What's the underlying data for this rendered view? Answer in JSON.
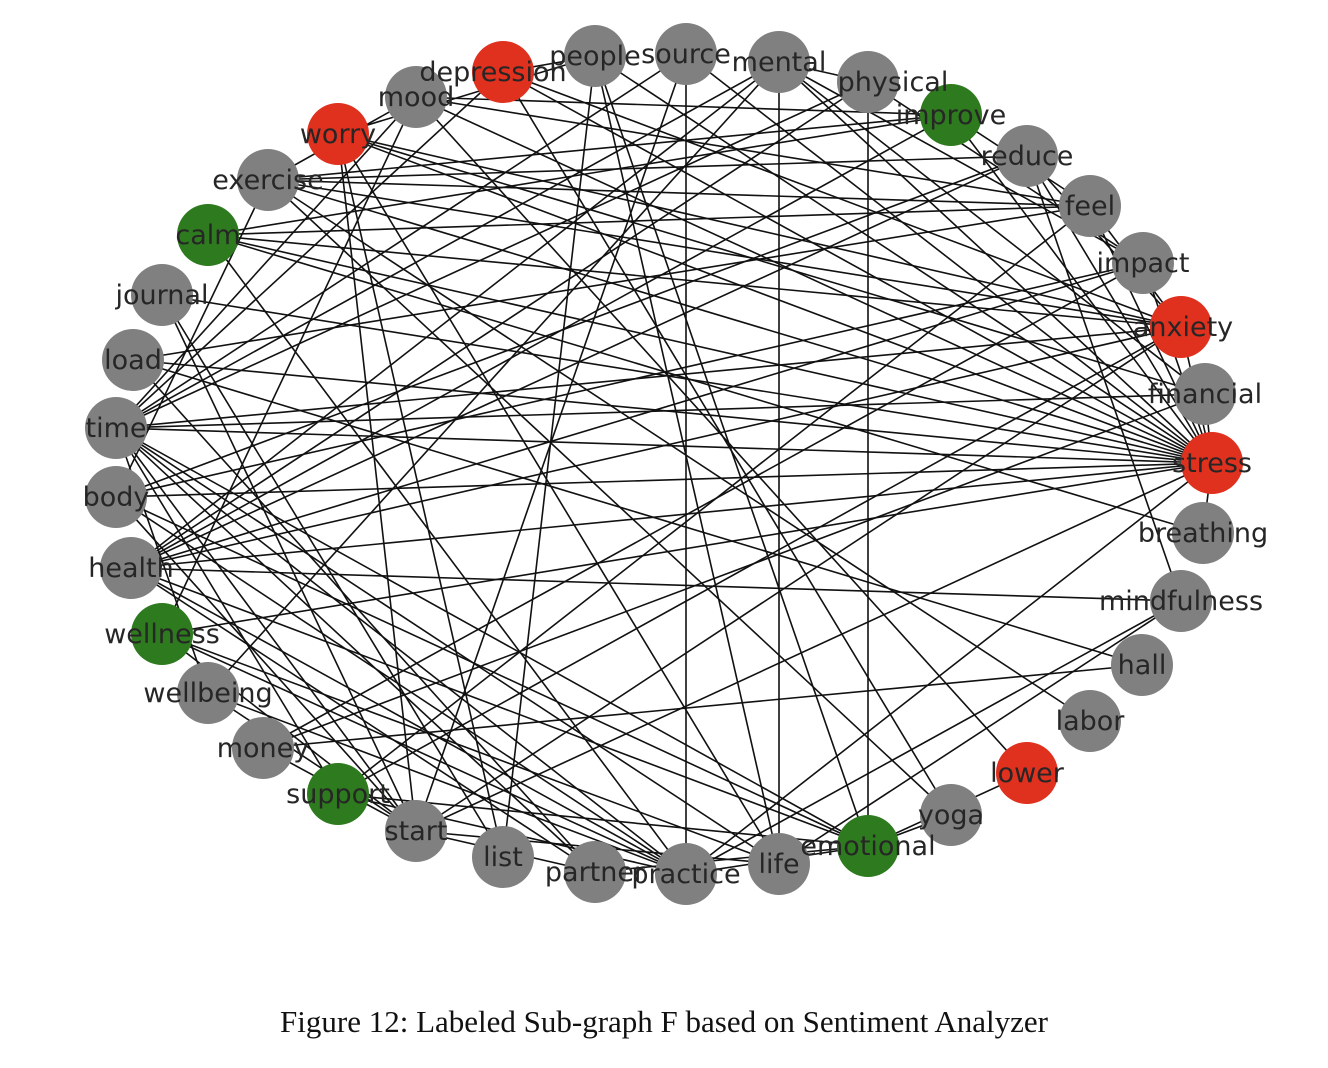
{
  "colors": {
    "negative": "#e0301e",
    "positive": "#2e7a1e",
    "neutral": "#808080",
    "edge": "#111111"
  },
  "nodes": [
    {
      "id": "depression",
      "sentiment": "negative"
    },
    {
      "id": "people",
      "sentiment": "neutral"
    },
    {
      "id": "source",
      "sentiment": "neutral"
    },
    {
      "id": "mental",
      "sentiment": "neutral"
    },
    {
      "id": "physical",
      "sentiment": "neutral"
    },
    {
      "id": "improve",
      "sentiment": "positive"
    },
    {
      "id": "reduce",
      "sentiment": "neutral"
    },
    {
      "id": "feel",
      "sentiment": "neutral"
    },
    {
      "id": "impact",
      "sentiment": "neutral"
    },
    {
      "id": "anxiety",
      "sentiment": "negative"
    },
    {
      "id": "financial",
      "sentiment": "neutral"
    },
    {
      "id": "stress",
      "sentiment": "negative"
    },
    {
      "id": "breathing",
      "sentiment": "neutral"
    },
    {
      "id": "mindfulness",
      "sentiment": "neutral"
    },
    {
      "id": "hall",
      "sentiment": "neutral"
    },
    {
      "id": "labor",
      "sentiment": "neutral"
    },
    {
      "id": "lower",
      "sentiment": "negative"
    },
    {
      "id": "yoga",
      "sentiment": "neutral"
    },
    {
      "id": "emotional",
      "sentiment": "positive"
    },
    {
      "id": "life",
      "sentiment": "neutral"
    },
    {
      "id": "practice",
      "sentiment": "neutral"
    },
    {
      "id": "partner",
      "sentiment": "neutral"
    },
    {
      "id": "list",
      "sentiment": "neutral"
    },
    {
      "id": "start",
      "sentiment": "neutral"
    },
    {
      "id": "support",
      "sentiment": "positive"
    },
    {
      "id": "money",
      "sentiment": "neutral"
    },
    {
      "id": "wellbeing",
      "sentiment": "neutral"
    },
    {
      "id": "wellness",
      "sentiment": "positive"
    },
    {
      "id": "health",
      "sentiment": "neutral"
    },
    {
      "id": "body",
      "sentiment": "neutral"
    },
    {
      "id": "time",
      "sentiment": "neutral"
    },
    {
      "id": "load",
      "sentiment": "neutral"
    },
    {
      "id": "journal",
      "sentiment": "neutral"
    },
    {
      "id": "calm",
      "sentiment": "positive"
    },
    {
      "id": "exercise",
      "sentiment": "neutral"
    },
    {
      "id": "worry",
      "sentiment": "negative"
    },
    {
      "id": "mood",
      "sentiment": "neutral"
    }
  ],
  "edges": [
    [
      "stress",
      "anxiety"
    ],
    [
      "stress",
      "financial"
    ],
    [
      "stress",
      "feel"
    ],
    [
      "stress",
      "impact"
    ],
    [
      "stress",
      "reduce"
    ],
    [
      "stress",
      "improve"
    ],
    [
      "stress",
      "mental"
    ],
    [
      "stress",
      "time"
    ],
    [
      "stress",
      "body"
    ],
    [
      "stress",
      "load"
    ],
    [
      "stress",
      "journal"
    ],
    [
      "stress",
      "calm"
    ],
    [
      "stress",
      "exercise"
    ],
    [
      "stress",
      "worry"
    ],
    [
      "stress",
      "health"
    ],
    [
      "stress",
      "people"
    ],
    [
      "stress",
      "mood"
    ],
    [
      "stress",
      "depression"
    ],
    [
      "stress",
      "practice"
    ],
    [
      "stress",
      "start"
    ],
    [
      "stress",
      "wellness"
    ],
    [
      "stress",
      "breathing"
    ],
    [
      "stress",
      "source"
    ],
    [
      "anxiety",
      "feel"
    ],
    [
      "anxiety",
      "depression"
    ],
    [
      "anxiety",
      "worry"
    ],
    [
      "anxiety",
      "time"
    ],
    [
      "anxiety",
      "exercise"
    ],
    [
      "anxiety",
      "health"
    ],
    [
      "anxiety",
      "reduce"
    ],
    [
      "anxiety",
      "start"
    ],
    [
      "anxiety",
      "calm"
    ],
    [
      "anxiety",
      "support"
    ],
    [
      "financial",
      "money"
    ],
    [
      "financial",
      "worry"
    ],
    [
      "financial",
      "time"
    ],
    [
      "financial",
      "mental"
    ],
    [
      "impact",
      "mental"
    ],
    [
      "impact",
      "health"
    ],
    [
      "impact",
      "physical"
    ],
    [
      "impact",
      "money"
    ],
    [
      "impact",
      "body"
    ],
    [
      "feel",
      "calm"
    ],
    [
      "feel",
      "mood"
    ],
    [
      "feel",
      "exercise"
    ],
    [
      "feel",
      "support"
    ],
    [
      "feel",
      "improve"
    ],
    [
      "feel",
      "load"
    ],
    [
      "reduce",
      "exercise"
    ],
    [
      "reduce",
      "health"
    ],
    [
      "reduce",
      "mindfulness"
    ],
    [
      "reduce",
      "body"
    ],
    [
      "improve",
      "mood"
    ],
    [
      "improve",
      "health"
    ],
    [
      "improve",
      "exercise"
    ],
    [
      "improve",
      "calm"
    ],
    [
      "physical",
      "mental"
    ],
    [
      "physical",
      "emotional"
    ],
    [
      "physical",
      "health"
    ],
    [
      "physical",
      "time"
    ],
    [
      "mental",
      "health"
    ],
    [
      "mental",
      "life"
    ],
    [
      "mental",
      "wellbeing"
    ],
    [
      "mental",
      "time"
    ],
    [
      "source",
      "practice"
    ],
    [
      "source",
      "start"
    ],
    [
      "source",
      "time"
    ],
    [
      "people",
      "depression"
    ],
    [
      "people",
      "list"
    ],
    [
      "people",
      "life"
    ],
    [
      "people",
      "worry"
    ],
    [
      "people",
      "emotional"
    ],
    [
      "depression",
      "time"
    ],
    [
      "depression",
      "yoga"
    ],
    [
      "mood",
      "exercise"
    ],
    [
      "mood",
      "time"
    ],
    [
      "mood",
      "wellness"
    ],
    [
      "mood",
      "lower"
    ],
    [
      "worry",
      "start"
    ],
    [
      "worry",
      "list"
    ],
    [
      "worry",
      "life"
    ],
    [
      "exercise",
      "yoga"
    ],
    [
      "exercise",
      "labor"
    ],
    [
      "exercise",
      "body"
    ],
    [
      "calm",
      "practice"
    ],
    [
      "calm",
      "breathing"
    ],
    [
      "journal",
      "start"
    ],
    [
      "journal",
      "list"
    ],
    [
      "load",
      "hall"
    ],
    [
      "load",
      "partner"
    ],
    [
      "time",
      "practice"
    ],
    [
      "time",
      "partner"
    ],
    [
      "time",
      "start"
    ],
    [
      "time",
      "life"
    ],
    [
      "time",
      "emotional"
    ],
    [
      "time",
      "support"
    ],
    [
      "time",
      "wellbeing"
    ],
    [
      "body",
      "practice"
    ],
    [
      "body",
      "emotional"
    ],
    [
      "body",
      "start"
    ],
    [
      "health",
      "partner"
    ],
    [
      "health",
      "emotional"
    ],
    [
      "health",
      "practice"
    ],
    [
      "health",
      "mindfulness"
    ],
    [
      "wellness",
      "practice"
    ],
    [
      "wellness",
      "start"
    ],
    [
      "wellness",
      "life"
    ],
    [
      "wellbeing",
      "practice"
    ],
    [
      "wellbeing",
      "start"
    ],
    [
      "money",
      "hall"
    ],
    [
      "money",
      "start"
    ],
    [
      "support",
      "emotional"
    ],
    [
      "support",
      "practice"
    ],
    [
      "start",
      "partner"
    ],
    [
      "start",
      "life"
    ],
    [
      "emotional",
      "yoga"
    ],
    [
      "emotional",
      "lower"
    ],
    [
      "emotional",
      "practice"
    ],
    [
      "practice",
      "mindfulness"
    ],
    [
      "life",
      "mindfulness"
    ],
    [
      "partner",
      "emotional"
    ]
  ],
  "caption": "Figure 12: Labeled Sub-graph F based on Sentiment Analyzer"
}
